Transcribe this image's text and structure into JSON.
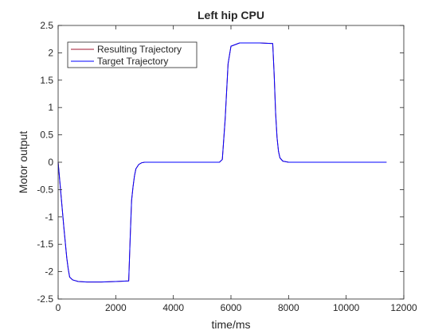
{
  "chart_data": {
    "type": "line",
    "title": "Left hip CPU",
    "xlabel": "time/ms",
    "ylabel": "Motor output",
    "xlim": [
      0,
      12000
    ],
    "ylim": [
      -2.5,
      2.5
    ],
    "xticks": [
      0,
      2000,
      4000,
      6000,
      8000,
      10000,
      12000
    ],
    "xtick_labels": [
      "0",
      "2000",
      "4000",
      "6000",
      "8000",
      "10000",
      "12000"
    ],
    "yticks": [
      -2.5,
      -2,
      -1.5,
      -1,
      -0.5,
      0,
      0.5,
      1,
      1.5,
      2,
      2.5
    ],
    "ytick_labels": [
      "-2.5",
      "-2",
      "-1.5",
      "-1",
      "-0.5",
      "0",
      "0.5",
      "1",
      "1.5",
      "2",
      "2.5"
    ],
    "grid": false,
    "legend_position": "top-left",
    "series": [
      {
        "name": "Resulting Trajectory",
        "color": "#a2142f",
        "x": [
          0,
          100,
          200,
          300,
          350,
          400,
          500,
          700,
          1000,
          1500,
          2000,
          2450,
          2500,
          2550,
          2600,
          2650,
          2700,
          2800,
          2900,
          3000,
          4000,
          5000,
          5600,
          5700,
          5800,
          5850,
          5900,
          6000,
          6300,
          7000,
          7450,
          7500,
          7550,
          7600,
          7650,
          7700,
          7800,
          8000,
          9000,
          10000,
          11000,
          11400
        ],
        "y": [
          0,
          -0.6,
          -1.2,
          -1.75,
          -1.95,
          -2.1,
          -2.15,
          -2.18,
          -2.19,
          -2.19,
          -2.18,
          -2.17,
          -1.4,
          -0.7,
          -0.45,
          -0.25,
          -0.12,
          -0.04,
          -0.01,
          0,
          0,
          0,
          0,
          0.05,
          0.8,
          1.3,
          1.8,
          2.12,
          2.18,
          2.18,
          2.17,
          1.6,
          0.9,
          0.45,
          0.2,
          0.08,
          0.02,
          0,
          0,
          0,
          0,
          0
        ]
      },
      {
        "name": "Target Trajectory",
        "color": "#0000ff",
        "x": [
          0,
          100,
          200,
          300,
          350,
          400,
          500,
          700,
          1000,
          1500,
          2000,
          2450,
          2500,
          2550,
          2600,
          2650,
          2700,
          2800,
          2900,
          3000,
          4000,
          5000,
          5600,
          5700,
          5800,
          5850,
          5900,
          6000,
          6300,
          7000,
          7450,
          7500,
          7550,
          7600,
          7650,
          7700,
          7800,
          8000,
          9000,
          10000,
          11000,
          11400
        ],
        "y": [
          0,
          -0.6,
          -1.2,
          -1.75,
          -1.95,
          -2.1,
          -2.15,
          -2.18,
          -2.19,
          -2.19,
          -2.18,
          -2.17,
          -1.4,
          -0.7,
          -0.45,
          -0.25,
          -0.12,
          -0.04,
          -0.01,
          0,
          0,
          0,
          0,
          0.05,
          0.8,
          1.3,
          1.8,
          2.12,
          2.18,
          2.18,
          2.17,
          1.6,
          0.9,
          0.45,
          0.2,
          0.08,
          0.02,
          0,
          0,
          0,
          0,
          0
        ]
      }
    ]
  }
}
